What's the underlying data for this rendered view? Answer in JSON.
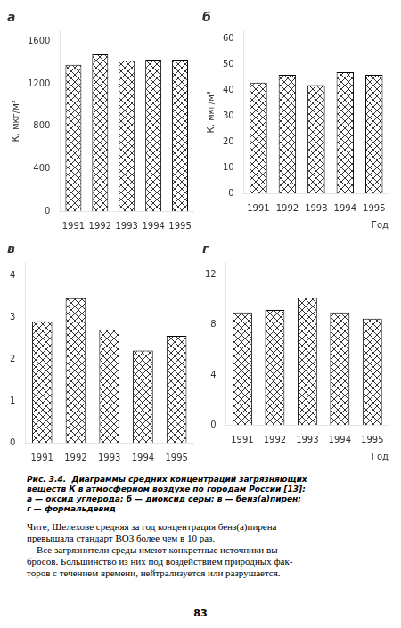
{
  "chart_data": [
    {
      "type": "bar",
      "title": "а",
      "ylabel": "К, мкг/м³",
      "categories": [
        "1991",
        "1992",
        "1993",
        "1994",
        "1995"
      ],
      "values": [
        1380,
        1480,
        1420,
        1430,
        1430
      ],
      "color": "white",
      "ylim": [
        0,
        1700
      ],
      "yticks": [
        0,
        400,
        800,
        1200,
        1600
      ],
      "grid": false
    },
    {
      "type": "bar",
      "title": "б",
      "ylabel": "К, мкг/м³",
      "xlabel": "Год",
      "categories": [
        "1991",
        "1992",
        "1993",
        "1994",
        "1995"
      ],
      "values": [
        43,
        46,
        42,
        47,
        46
      ],
      "color": "white",
      "ylim": [
        0,
        63
      ],
      "yticks": [
        0,
        10,
        20,
        30,
        40,
        50,
        60
      ],
      "grid": false
    },
    {
      "type": "bar",
      "title": "в",
      "categories": [
        "1991",
        "1992",
        "1993",
        "1994",
        "1995"
      ],
      "values": [
        2.9,
        3.45,
        2.7,
        2.2,
        2.55
      ],
      "color": "white",
      "ylim": [
        0,
        4.3
      ],
      "yticks": [
        0,
        1,
        2,
        3,
        4
      ],
      "grid": false
    },
    {
      "type": "bar",
      "title": "г",
      "xlabel": "Год",
      "categories": [
        "1991",
        "1992",
        "1993",
        "1994",
        "1995"
      ],
      "values": [
        9.0,
        9.2,
        10.2,
        9.0,
        8.5
      ],
      "color": "white",
      "ylim": [
        0,
        13
      ],
      "yticks": [
        0,
        4,
        8,
        12
      ],
      "grid": false
    }
  ],
  "caption": "Рис. 3.4.  Диаграммы средних концентраций загрязняющих\nвеществ К в атмосферном воздухе по городам России [13]:\nа — оксид углерода; б — диоксид серы; в — бенз(а)пирен;\nг — формальдевид",
  "body_text": "Чите, Шелехове средняя за год концентрация бенз(а)пирена\nпревышала стандарт ВОЗ более чем в 10 раз.\n    Все загрязнители среды имеют конкретные источники вы-\nбросов. Большинство из них под воздействием природных фак-\nторов с течением времени, нейтрализуется или разрушается.",
  "page_number": "83"
}
